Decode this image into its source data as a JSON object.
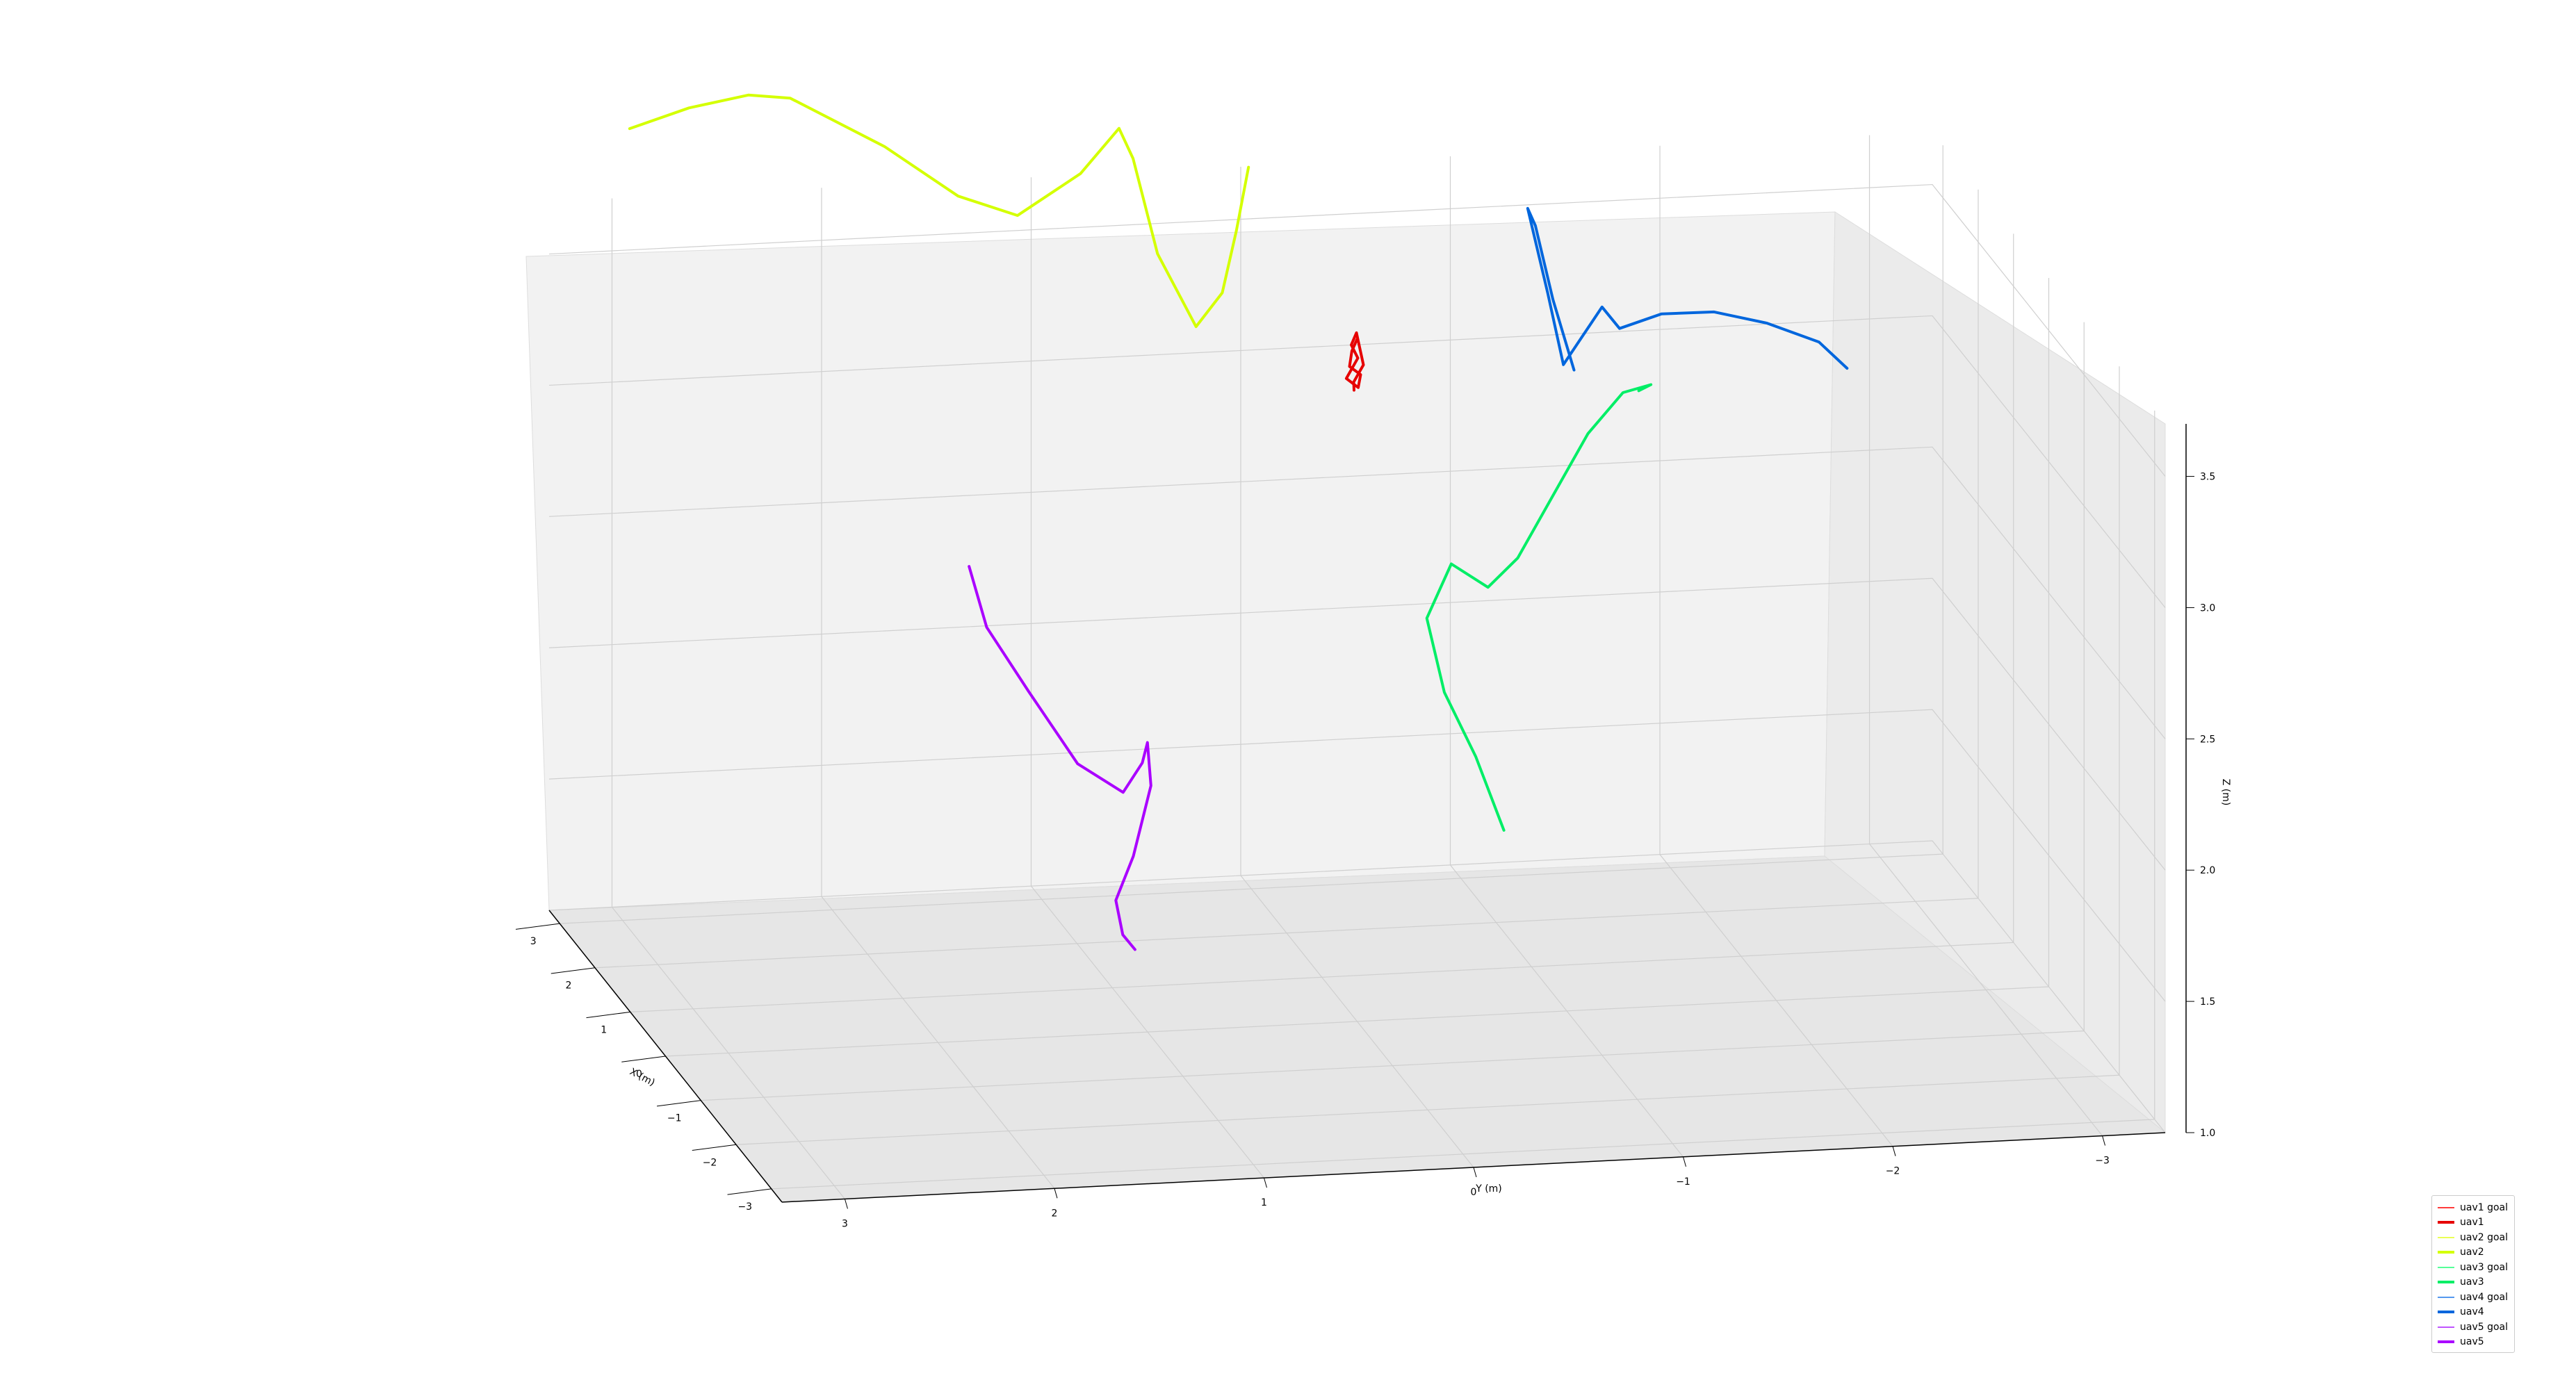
{
  "chart_data": {
    "type": "line3d",
    "title": "",
    "xlabel": "X (m)",
    "ylabel": "Y (m)",
    "zlabel": "Z (m)",
    "xlim": [
      -3.3,
      3.3
    ],
    "ylim": [
      -3.3,
      3.3
    ],
    "zlim": [
      1.0,
      3.7
    ],
    "x_ticks": [
      "3",
      "2",
      "1",
      "0",
      "−1",
      "−2",
      "−3"
    ],
    "y_ticks": [
      "3",
      "2",
      "1",
      "0",
      "−1",
      "−2",
      "−3"
    ],
    "z_ticks": [
      "1.0",
      "1.5",
      "2.0",
      "2.5",
      "3.0",
      "3.5"
    ],
    "grid": true,
    "legend_position": "lower-right",
    "legend": [
      {
        "label": "uav1 goal",
        "color": "#ff3b3b",
        "style": "thin"
      },
      {
        "label": "uav1",
        "color": "#e60000",
        "style": "thick"
      },
      {
        "label": "uav2 goal",
        "color": "#eaff55",
        "style": "thin"
      },
      {
        "label": "uav2",
        "color": "#d4ff00",
        "style": "thick"
      },
      {
        "label": "uav3 goal",
        "color": "#55ff99",
        "style": "thin"
      },
      {
        "label": "uav3",
        "color": "#00ee66",
        "style": "thick"
      },
      {
        "label": "uav4 goal",
        "color": "#5599ee",
        "style": "thin"
      },
      {
        "label": "uav4",
        "color": "#0066dd",
        "style": "thick"
      },
      {
        "label": "uav5 goal",
        "color": "#c055ff",
        "style": "thin"
      },
      {
        "label": "uav5",
        "color": "#aa00ff",
        "style": "thick"
      }
    ],
    "series": [
      {
        "name": "uav1",
        "color": "#e60000",
        "points": [
          [
            0.0,
            0.0,
            3.6
          ],
          [
            0.03,
            0.02,
            3.55
          ],
          [
            -0.02,
            0.04,
            3.5
          ],
          [
            0.02,
            -0.02,
            3.46
          ],
          [
            -0.03,
            0.0,
            3.42
          ],
          [
            0.01,
            0.05,
            3.45
          ],
          [
            0.04,
            -0.01,
            3.52
          ],
          [
            -0.01,
            0.03,
            3.58
          ],
          [
            0.02,
            0.0,
            3.62
          ],
          [
            0.0,
            -0.03,
            3.5
          ],
          [
            -0.02,
            0.02,
            3.44
          ],
          [
            0.03,
            0.01,
            3.4
          ]
        ]
      },
      {
        "name": "uav2",
        "color": "#d4ff00",
        "points": [
          [
            2.8,
            3.0,
            4.05
          ],
          [
            2.9,
            2.7,
            4.1
          ],
          [
            3.0,
            2.4,
            4.12
          ],
          [
            3.0,
            2.2,
            4.1
          ],
          [
            2.7,
            1.8,
            3.95
          ],
          [
            2.4,
            1.5,
            3.8
          ],
          [
            2.2,
            1.25,
            3.75
          ],
          [
            1.9,
            1.0,
            3.95
          ],
          [
            1.7,
            0.85,
            4.15
          ],
          [
            1.6,
            0.8,
            4.05
          ],
          [
            1.5,
            0.7,
            3.7
          ],
          [
            1.3,
            0.55,
            3.45
          ],
          [
            1.15,
            0.45,
            3.6
          ],
          [
            1.05,
            0.4,
            3.85
          ],
          [
            1.0,
            0.35,
            4.1
          ]
        ]
      },
      {
        "name": "uav3",
        "color": "#00ee66",
        "points": [
          [
            0.0,
            -0.7,
            1.7
          ],
          [
            0.2,
            -0.6,
            1.95
          ],
          [
            0.5,
            -0.5,
            2.15
          ],
          [
            0.7,
            -0.45,
            2.4
          ],
          [
            0.6,
            -0.55,
            2.62
          ],
          [
            0.45,
            -0.7,
            2.55
          ],
          [
            0.2,
            -0.8,
            2.7
          ],
          [
            -0.2,
            -0.9,
            3.0
          ],
          [
            -0.6,
            -1.0,
            3.3
          ],
          [
            -1.0,
            -1.1,
            3.52
          ],
          [
            -1.2,
            -1.2,
            3.58
          ],
          [
            -1.15,
            -1.15,
            3.55
          ]
        ]
      },
      {
        "name": "uav4",
        "color": "#0066dd",
        "points": [
          [
            -0.8,
            -0.9,
            3.58
          ],
          [
            -0.5,
            -0.85,
            3.8
          ],
          [
            -0.3,
            -0.8,
            4.05
          ],
          [
            -0.2,
            -0.78,
            4.1
          ],
          [
            -0.35,
            -0.85,
            3.8
          ],
          [
            -0.5,
            -0.9,
            3.55
          ],
          [
            -0.75,
            -0.95,
            3.7
          ],
          [
            -1.0,
            -1.0,
            3.85
          ],
          [
            -1.2,
            -1.05,
            3.8
          ],
          [
            -1.5,
            -1.2,
            3.9
          ],
          [
            -1.8,
            -1.4,
            3.95
          ],
          [
            -2.1,
            -1.6,
            3.95
          ],
          [
            -2.4,
            -1.8,
            3.92
          ],
          [
            -2.6,
            -1.9,
            3.85
          ]
        ]
      },
      {
        "name": "uav5",
        "color": "#aa00ff",
        "points": [
          [
            0.9,
            1.7,
            2.65
          ],
          [
            0.7,
            1.65,
            2.45
          ],
          [
            0.4,
            1.5,
            2.25
          ],
          [
            0.2,
            1.3,
            2.0
          ],
          [
            0.1,
            1.1,
            1.9
          ],
          [
            0.15,
            1.0,
            2.0
          ],
          [
            0.3,
            0.95,
            2.05
          ],
          [
            0.5,
            0.9,
            1.85
          ],
          [
            0.7,
            0.95,
            1.55
          ],
          [
            0.9,
            1.0,
            1.35
          ],
          [
            1.0,
            0.95,
            1.2
          ],
          [
            0.95,
            0.9,
            1.15
          ]
        ]
      }
    ]
  }
}
